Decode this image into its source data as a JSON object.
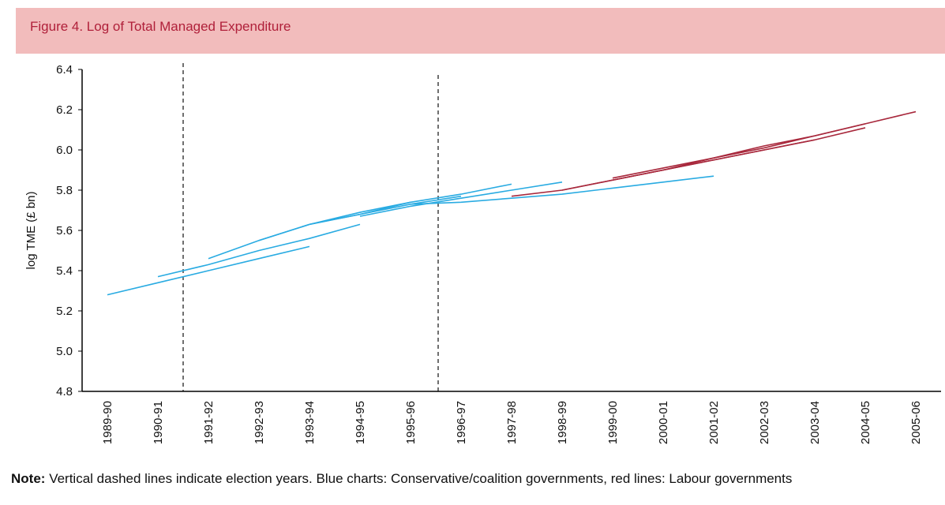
{
  "title": "Figure 4. Log of Total Managed Expenditure",
  "note_label": "Note:",
  "note": "Vertical dashed lines indicate election years. Blue charts: Conservative/coalition governments, red lines: Labour governments",
  "chart_data": {
    "type": "line",
    "y_label": "log TME (£ bn)",
    "categories": [
      "1989-90",
      "1990-91",
      "1991-92",
      "1992-93",
      "1993-94",
      "1994-95",
      "1995-96",
      "1996-97",
      "1997-98",
      "1998-99",
      "1999-00",
      "2000-01",
      "2001-02",
      "2002-03",
      "2003-04",
      "2004-05",
      "2005-06"
    ],
    "ylim": [
      4.8,
      6.4
    ],
    "yticks": [
      4.8,
      {
        "value": 5.0,
        "label": "5.0"
      },
      5.2,
      5.4,
      5.6,
      5.8,
      {
        "value": 6.0,
        "label": "6.0"
      },
      6.2,
      6.4
    ],
    "series": [
      {
        "color": "#29abe2",
        "values": [
          5.28,
          5.34,
          5.4,
          5.46,
          5.52,
          null,
          null,
          null,
          null,
          null,
          null,
          null,
          null,
          null,
          null,
          null,
          null
        ]
      },
      {
        "color": "#29abe2",
        "values": [
          null,
          5.37,
          5.43,
          5.5,
          5.56,
          5.63,
          null,
          null,
          null,
          null,
          null,
          null,
          null,
          null,
          null,
          null,
          null
        ]
      },
      {
        "color": "#29abe2",
        "values": [
          null,
          null,
          5.46,
          5.55,
          5.63,
          5.69,
          5.74,
          null,
          null,
          null,
          null,
          null,
          null,
          null,
          null,
          null,
          null
        ]
      },
      {
        "color": "#29abe2",
        "values": [
          null,
          null,
          null,
          5.55,
          5.63,
          5.68,
          5.73,
          5.77,
          null,
          null,
          null,
          null,
          null,
          null,
          null,
          null,
          null
        ]
      },
      {
        "color": "#29abe2",
        "values": [
          null,
          null,
          null,
          null,
          5.63,
          5.68,
          5.74,
          5.78,
          5.83,
          null,
          null,
          null,
          null,
          null,
          null,
          null,
          null
        ]
      },
      {
        "color": "#29abe2",
        "values": [
          null,
          null,
          null,
          null,
          null,
          5.67,
          5.72,
          5.76,
          5.8,
          5.84,
          null,
          null,
          null,
          null,
          null,
          null,
          null
        ]
      },
      {
        "color": "#29abe2",
        "values": [
          null,
          null,
          null,
          null,
          null,
          null,
          5.73,
          5.74,
          5.76,
          5.78,
          5.81,
          5.84,
          5.87,
          null,
          null,
          null,
          null
        ]
      },
      {
        "color": "#a8283c",
        "values": [
          null,
          null,
          null,
          null,
          null,
          null,
          null,
          null,
          5.77,
          5.8,
          5.85,
          5.9,
          5.95,
          6.0,
          6.05,
          null,
          null
        ]
      },
      {
        "color": "#a8283c",
        "values": [
          null,
          null,
          null,
          null,
          null,
          null,
          null,
          null,
          null,
          5.8,
          5.85,
          5.9,
          5.95,
          6.0,
          6.05,
          6.11,
          null
        ]
      },
      {
        "color": "#a8283c",
        "values": [
          null,
          null,
          null,
          null,
          null,
          null,
          null,
          null,
          null,
          null,
          5.86,
          5.91,
          5.96,
          6.02,
          6.07,
          6.13,
          6.19
        ]
      },
      {
        "color": "#a8283c",
        "values": [
          null,
          null,
          null,
          null,
          null,
          null,
          null,
          null,
          null,
          null,
          5.85,
          5.9,
          5.96,
          6.01,
          6.07,
          6.13,
          null
        ]
      }
    ]
  }
}
